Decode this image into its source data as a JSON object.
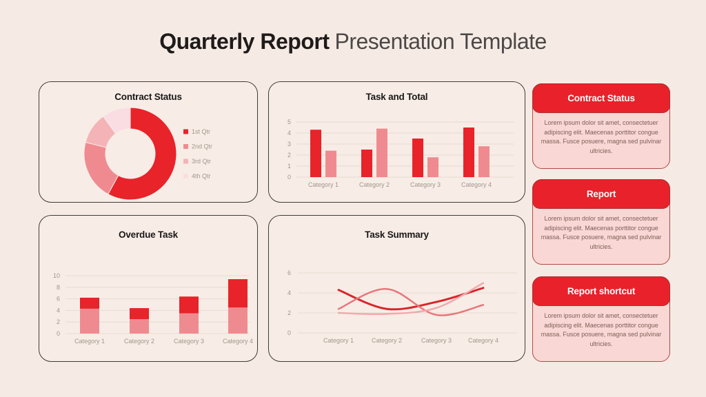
{
  "page": {
    "title_bold": "Quarterly Report",
    "title_regular": "Presentation Template",
    "background": "#f6ebe4"
  },
  "colors": {
    "panel_bg": "#f7ede6",
    "panel_border": "#3e3a38",
    "grid": "#e6dad3",
    "axis_text": "#a3948c",
    "title_dark": "#1f1b1a",
    "title_gray": "#4b4747",
    "card_red": "#e8212a",
    "card_body_bg": "#f8d7d4",
    "card_body_border": "#b04a45",
    "card_text": "#7f5c56",
    "card_header_text": "#ffffff"
  },
  "chart_data": [
    {
      "type": "pie",
      "title": "Contract Status",
      "donut": true,
      "labels": [
        "1st Qtr",
        "2nd Qtr",
        "3rd Qtr",
        "4th Qtr"
      ],
      "values": [
        58,
        21,
        11,
        10
      ],
      "colors": [
        "#e8232a",
        "#ef8b90",
        "#f4b3b7",
        "#fadde2"
      ],
      "legend_position": "right"
    },
    {
      "type": "bar",
      "title": "Task and Total",
      "categories": [
        "Category 1",
        "Category 2",
        "Category 3",
        "Category 4"
      ],
      "series": [
        {
          "color": "#e8232a",
          "values": [
            4.3,
            2.5,
            3.5,
            4.5
          ]
        },
        {
          "color": "#ef8b90",
          "values": [
            2.4,
            4.4,
            1.8,
            2.8
          ]
        }
      ],
      "ylim": [
        0,
        5
      ],
      "yticks": [
        0,
        1,
        2,
        3,
        4,
        5
      ],
      "grid": true,
      "legend_position": "none"
    },
    {
      "type": "stacked-bar",
      "title": "Overdue Task",
      "categories": [
        "Category 1",
        "Category 2",
        "Category 3",
        "Category 4"
      ],
      "series": [
        {
          "color": "#ef8b90",
          "values": [
            4.3,
            2.5,
            3.5,
            4.5
          ]
        },
        {
          "color": "#e8232a",
          "values": [
            1.9,
            1.9,
            2.9,
            4.9
          ]
        }
      ],
      "ylim": [
        0,
        10
      ],
      "yticks": [
        0,
        2,
        4,
        6,
        8,
        10
      ],
      "grid": true,
      "legend_position": "none"
    },
    {
      "type": "line",
      "title": "Task Summary",
      "categories": [
        "Category 1",
        "Category 2",
        "Category 3",
        "Category 4"
      ],
      "series": [
        {
          "color": "#d8262c",
          "stroke_width": 3,
          "values": [
            4.3,
            2.4,
            3.1,
            4.5
          ]
        },
        {
          "color": "#e8767c",
          "stroke_width": 2.5,
          "values": [
            2.4,
            4.4,
            1.8,
            2.8
          ]
        },
        {
          "color": "#f2a9ad",
          "stroke_width": 2.5,
          "values": [
            2.0,
            1.9,
            2.5,
            5.0
          ]
        }
      ],
      "ylim": [
        0,
        6
      ],
      "yticks": [
        0,
        2,
        4,
        6
      ],
      "grid": true,
      "smooth": true,
      "legend_position": "none"
    }
  ],
  "cards": [
    {
      "title": "Contract Status",
      "body": "Lorem ipsum dolor sit amet, consectetuer adipiscing elit. Maecenas porttitor congue massa. Fusce posuere, magna sed pulvinar ultricies."
    },
    {
      "title": "Report",
      "body": "Lorem ipsum dolor sit amet, consectetuer adipiscing elit. Maecenas porttitor congue massa. Fusce posuere, magna sed pulvinar ultricies."
    },
    {
      "title": "Report shortcut",
      "body": "Lorem ipsum dolor sit amet, consectetuer adipiscing elit. Maecenas porttitor congue massa. Fusce posuere, magna sed pulvinar ultricies."
    }
  ]
}
